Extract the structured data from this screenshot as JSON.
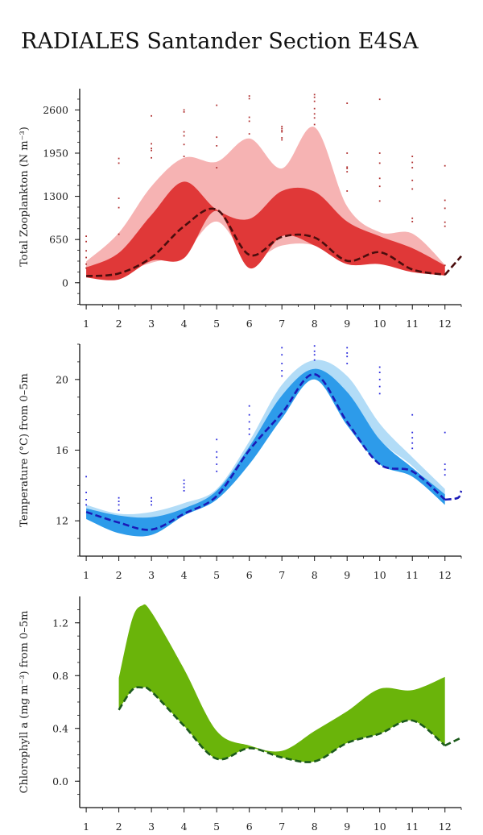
{
  "page": {
    "title": "RADIALES Santander Section E4SA"
  },
  "chart_data": [
    {
      "id": "zooplankton",
      "type": "area",
      "ylabel": "Total Zooplankton (N m⁻³)",
      "xlim": [
        0.8,
        12.5
      ],
      "ylim": [
        -330,
        2920
      ],
      "x_ticks": [
        "1",
        "2",
        "3",
        "4",
        "5",
        "6",
        "7",
        "8",
        "9",
        "10",
        "11",
        "12"
      ],
      "y_ticks": [
        "0",
        "650",
        "1300",
        "1950",
        "2600"
      ],
      "y_tick_values": [
        0,
        650,
        1300,
        1950,
        2600
      ],
      "colors": {
        "outer": "#f6b3b3",
        "inner": "#e03838",
        "median": "#4a0d0d",
        "points": "#b03030"
      },
      "x": [
        1,
        2,
        3,
        4,
        5,
        6,
        7,
        8,
        9,
        10,
        11,
        12
      ],
      "outer_upper": [
        320,
        750,
        1450,
        1880,
        1820,
        2170,
        1720,
        2340,
        1150,
        760,
        740,
        270
      ],
      "outer_lower": [
        130,
        160,
        300,
        460,
        920,
        370,
        560,
        560,
        280,
        350,
        200,
        150
      ],
      "inner_upper": [
        230,
        450,
        1020,
        1520,
        1100,
        960,
        1380,
        1370,
        920,
        700,
        520,
        260
      ],
      "inner_lower": [
        80,
        50,
        330,
        370,
        1080,
        220,
        700,
        560,
        280,
        280,
        160,
        110
      ],
      "median": [
        100,
        140,
        380,
        850,
        1100,
        420,
        690,
        680,
        330,
        460,
        200,
        120
      ],
      "median_extension": [
        [
          12,
          120
        ],
        [
          12.5,
          400
        ]
      ],
      "points": [
        {
          "x": 1,
          "y": [
            700,
            620,
            480,
            380,
            280,
            220
          ]
        },
        {
          "x": 2,
          "y": [
            1870,
            1800,
            1270,
            1130,
            730
          ]
        },
        {
          "x": 3,
          "y": [
            2510,
            2090,
            2020,
            1990,
            1880
          ]
        },
        {
          "x": 4,
          "y": [
            2600,
            2570,
            2270,
            2210,
            2080,
            1900
          ]
        },
        {
          "x": 5,
          "y": [
            2670,
            2190,
            2060,
            1730
          ]
        },
        {
          "x": 6,
          "y": [
            2810,
            2770,
            2490,
            2430,
            2240
          ]
        },
        {
          "x": 7,
          "y": [
            2350,
            2320,
            2290,
            2270,
            2180,
            2150
          ]
        },
        {
          "x": 8,
          "y": [
            2830,
            2790,
            2730,
            2620,
            2540,
            2480,
            2380
          ]
        },
        {
          "x": 9,
          "y": [
            2700,
            1950,
            1740,
            1720,
            1670,
            1380
          ]
        },
        {
          "x": 10,
          "y": [
            2760,
            1950,
            1800,
            1570,
            1450,
            1230
          ]
        },
        {
          "x": 11,
          "y": [
            1900,
            1810,
            1730,
            1540,
            1410,
            970,
            920
          ]
        },
        {
          "x": 12,
          "y": [
            1760,
            1240,
            1120,
            910,
            850,
            260
          ]
        }
      ]
    },
    {
      "id": "temperature",
      "type": "area",
      "ylabel": "Temperature (°C) from 0–5m",
      "xlim": [
        0.8,
        12.5
      ],
      "ylim": [
        10.0,
        22.0
      ],
      "x_ticks": [
        "1",
        "2",
        "3",
        "4",
        "5",
        "6",
        "7",
        "8",
        "9",
        "10",
        "11",
        "12"
      ],
      "y_ticks": [
        "12",
        "16",
        "20"
      ],
      "y_tick_values": [
        12,
        16,
        20
      ],
      "colors": {
        "outer": "#b2dcf7",
        "inner": "#2d9bea",
        "median": "#1a1ab8",
        "points": "#2b2bdd"
      },
      "x": [
        1,
        2,
        3,
        4,
        5,
        6,
        7,
        8,
        9,
        10,
        11,
        12
      ],
      "outer_upper": [
        12.9,
        12.4,
        12.5,
        13.0,
        13.8,
        16.5,
        19.7,
        21.1,
        20.2,
        17.5,
        15.6,
        13.8
      ],
      "outer_lower": [
        12.2,
        11.9,
        11.8,
        12.4,
        13.3,
        15.7,
        18.6,
        20.5,
        19.3,
        16.6,
        15.1,
        13.3
      ],
      "inner_upper": [
        12.7,
        12.3,
        12.2,
        12.7,
        13.7,
        16.2,
        19.1,
        20.6,
        19.3,
        16.6,
        15.0,
        13.5
      ],
      "inner_lower": [
        12.1,
        11.3,
        11.2,
        12.3,
        13.2,
        15.2,
        17.8,
        20.0,
        17.4,
        15.2,
        14.5,
        12.9
      ],
      "median": [
        12.5,
        11.9,
        11.5,
        12.4,
        13.4,
        16.0,
        18.1,
        20.3,
        17.6,
        15.2,
        14.8,
        13.2
      ],
      "median_extension": [
        [
          12,
          13.2
        ],
        [
          12.4,
          13.3
        ],
        [
          12.5,
          13.7
        ]
      ],
      "points": [
        {
          "x": 1,
          "y": [
            14.5,
            13.6,
            13.2,
            12.9
          ]
        },
        {
          "x": 2,
          "y": [
            13.3,
            13.1,
            12.9,
            12.6
          ]
        },
        {
          "x": 3,
          "y": [
            13.3,
            13.1,
            12.9
          ]
        },
        {
          "x": 4,
          "y": [
            14.3,
            14.1,
            13.9,
            13.7
          ]
        },
        {
          "x": 5,
          "y": [
            16.6,
            15.9,
            15.6,
            15.2,
            14.8
          ]
        },
        {
          "x": 6,
          "y": [
            18.5,
            18.0,
            17.6,
            17.2,
            16.9
          ]
        },
        {
          "x": 7,
          "y": [
            21.8,
            21.4,
            20.9,
            20.5,
            20.2
          ]
        },
        {
          "x": 8,
          "y": [
            21.9,
            21.6,
            21.4,
            21.1
          ]
        },
        {
          "x": 9,
          "y": [
            21.8,
            21.5,
            21.3,
            20.9
          ]
        },
        {
          "x": 10,
          "y": [
            20.7,
            20.4,
            20.0,
            19.6,
            19.2
          ]
        },
        {
          "x": 11,
          "y": [
            18.0,
            17.0,
            16.7,
            16.4,
            16.1
          ]
        },
        {
          "x": 12,
          "y": [
            17.0,
            15.2,
            14.9,
            14.6
          ]
        }
      ]
    },
    {
      "id": "chlorophyll",
      "type": "area",
      "ylabel": "Chlorophyll a (mg m⁻³) from 0–5m",
      "xlim": [
        0.8,
        12.5
      ],
      "ylim": [
        -0.2,
        1.4
      ],
      "x_ticks": [
        "1",
        "2",
        "3",
        "4",
        "5",
        "6",
        "7",
        "8",
        "9",
        "10",
        "11",
        "12"
      ],
      "y_ticks": [
        "0.0",
        "0.4",
        "0.8",
        "1.2"
      ],
      "y_tick_values": [
        0.0,
        0.4,
        0.8,
        1.2
      ],
      "colors": {
        "outer": "#6ab40a",
        "median": "#1c5a1c"
      },
      "x": [
        2,
        2.4,
        2.7,
        3,
        4,
        5,
        6,
        7,
        8,
        9,
        10,
        11,
        12
      ],
      "upper": [
        0.78,
        1.22,
        1.33,
        1.28,
        0.85,
        0.38,
        0.27,
        0.23,
        0.38,
        0.53,
        0.7,
        0.69,
        0.79
      ],
      "lower": [
        0.54,
        0.69,
        0.71,
        0.68,
        0.42,
        0.17,
        0.25,
        0.18,
        0.15,
        0.29,
        0.36,
        0.46,
        0.27
      ],
      "median": [
        0.54,
        0.69,
        0.71,
        0.68,
        0.42,
        0.17,
        0.25,
        0.18,
        0.15,
        0.29,
        0.36,
        0.46,
        0.27
      ],
      "median_extension": [
        [
          12,
          0.27
        ],
        [
          12.5,
          0.33
        ]
      ]
    }
  ]
}
